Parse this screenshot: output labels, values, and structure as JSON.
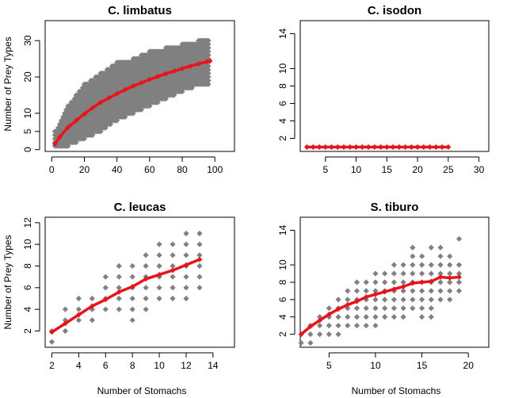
{
  "figure": {
    "bottom_label_left": "Number of Stomachs",
    "bottom_label_right": "Number of Stomachs",
    "side_label_top": "Number of Prey Types",
    "side_label_bottom": "Number of Prey Types"
  },
  "colors": {
    "points": "#808080",
    "curve": "#e8141a",
    "axis": "#000000"
  },
  "chart_data": [
    {
      "type": "scatter",
      "title": "C. limbatus",
      "xlabel": "",
      "ylabel": "Number of Prey Types",
      "xlim": [
        -4,
        112
      ],
      "ylim": [
        -0.5,
        35.5
      ],
      "xticks": [
        0,
        20,
        40,
        60,
        80,
        100
      ],
      "yticks": [
        0,
        5,
        10,
        20,
        30
      ],
      "scatter_mode": "band",
      "band": {
        "x": [
          2,
          10,
          20,
          30,
          40,
          50,
          60,
          70,
          80,
          90,
          96
        ],
        "low": [
          0.5,
          1,
          3,
          5,
          8,
          10,
          12,
          14,
          16,
          17.5,
          18
        ],
        "high": [
          5,
          12,
          18,
          21,
          24,
          25,
          27,
          28,
          29,
          30,
          30
        ]
      },
      "points_x": [],
      "points_y": [],
      "mean_curve": {
        "x": [
          2,
          5,
          10,
          15,
          20,
          25,
          30,
          35,
          40,
          45,
          50,
          55,
          60,
          65,
          70,
          75,
          80,
          85,
          90,
          95,
          97
        ],
        "y": [
          1.6,
          3.5,
          6.1,
          8.0,
          9.8,
          11.5,
          13.0,
          14.2,
          15.4,
          16.5,
          17.5,
          18.4,
          19.3,
          20.1,
          20.9,
          21.6,
          22.3,
          23.0,
          23.6,
          24.2,
          24.4
        ]
      }
    },
    {
      "type": "scatter",
      "title": "C. isodon",
      "xlabel": "",
      "ylabel": "",
      "xlim": [
        0.9,
        31.6
      ],
      "ylim": [
        0.5,
        15.5
      ],
      "xticks": [
        5,
        10,
        15,
        20,
        25,
        30
      ],
      "yticks": [
        2,
        4,
        6,
        8,
        10,
        14
      ],
      "scatter_mode": "points",
      "points_x": [
        2,
        3,
        4,
        5,
        6,
        7,
        8,
        9,
        10,
        11,
        12,
        13,
        14,
        15,
        16,
        17,
        18,
        19,
        20,
        21,
        22,
        23,
        24,
        25
      ],
      "points_y": [
        1,
        1,
        1,
        1,
        1,
        1,
        1,
        1,
        1,
        1,
        1,
        1,
        1,
        1,
        1,
        1,
        1,
        1,
        1,
        1,
        1,
        1,
        1,
        1
      ],
      "mean_curve": {
        "x": [
          2,
          3,
          4,
          5,
          6,
          7,
          8,
          9,
          10,
          11,
          12,
          13,
          14,
          15,
          16,
          17,
          18,
          19,
          20,
          21,
          22,
          23,
          24,
          25
        ],
        "y": [
          1,
          1,
          1,
          1,
          1,
          1,
          1,
          1,
          1,
          1,
          1,
          1,
          1,
          1,
          1,
          1,
          1,
          1,
          1,
          1,
          1,
          1,
          1,
          1
        ]
      }
    },
    {
      "type": "scatter",
      "title": "C. leucas",
      "xlabel": "Number of Stomachs",
      "ylabel": "Number of Prey Types",
      "xlim": [
        1.5,
        15.6
      ],
      "ylim": [
        0.5,
        12.5
      ],
      "xticks": [
        2,
        4,
        6,
        8,
        10,
        12,
        14
      ],
      "yticks": [
        2,
        4,
        6,
        8,
        10,
        12
      ],
      "scatter_mode": "points",
      "points_x": [
        2,
        2,
        3,
        3,
        3,
        4,
        4,
        4,
        5,
        5,
        5,
        6,
        6,
        6,
        6,
        7,
        7,
        7,
        7,
        7,
        8,
        8,
        8,
        8,
        8,
        8,
        9,
        9,
        9,
        9,
        9,
        9,
        10,
        10,
        10,
        10,
        10,
        10,
        11,
        11,
        11,
        11,
        11,
        11,
        12,
        12,
        12,
        12,
        12,
        12,
        12,
        13,
        13,
        13,
        13,
        13,
        13
      ],
      "points_y": [
        1,
        2,
        2,
        3,
        4,
        3,
        4,
        5,
        3,
        4,
        5,
        4,
        5,
        6,
        7,
        4,
        5,
        6,
        7,
        8,
        3,
        4,
        5,
        6,
        7,
        8,
        4,
        6,
        7,
        8,
        9,
        5,
        5,
        6,
        7,
        8,
        9,
        10,
        5,
        6,
        7,
        8,
        9,
        10,
        6,
        7,
        8,
        9,
        10,
        11,
        5,
        6,
        7,
        8,
        9,
        10,
        11
      ],
      "mean_curve": {
        "x": [
          2,
          3,
          4,
          5,
          6,
          7,
          8,
          9,
          10,
          11,
          12,
          13
        ],
        "y": [
          1.9,
          2.7,
          3.5,
          4.3,
          4.9,
          5.6,
          6.1,
          6.8,
          7.2,
          7.6,
          8.1,
          8.6
        ]
      }
    },
    {
      "type": "scatter",
      "title": "S. tiburo",
      "xlabel": "Number of Stomachs",
      "ylabel": "",
      "xlim": [
        1.9,
        22.2
      ],
      "ylim": [
        0.5,
        15.5
      ],
      "xticks": [
        5,
        10,
        15,
        20
      ],
      "yticks": [
        2,
        4,
        6,
        8,
        10,
        14
      ],
      "scatter_mode": "points",
      "points_x": [
        2,
        2,
        3,
        3,
        3,
        4,
        4,
        4,
        5,
        5,
        5,
        5,
        6,
        6,
        6,
        6,
        6,
        7,
        7,
        7,
        7,
        7,
        8,
        8,
        8,
        8,
        8,
        8,
        9,
        9,
        9,
        9,
        9,
        9,
        10,
        10,
        10,
        10,
        10,
        10,
        10,
        11,
        11,
        11,
        11,
        11,
        11,
        12,
        12,
        12,
        12,
        12,
        12,
        12,
        13,
        13,
        13,
        13,
        13,
        13,
        13,
        14,
        14,
        14,
        14,
        14,
        14,
        14,
        14,
        15,
        15,
        15,
        15,
        15,
        15,
        15,
        15,
        16,
        16,
        16,
        16,
        16,
        16,
        16,
        16,
        17,
        17,
        17,
        17,
        17,
        17,
        17,
        18,
        18,
        18,
        18,
        18,
        18,
        19,
        19,
        19,
        19,
        19
      ],
      "points_y": [
        1,
        2,
        1,
        2,
        3,
        2,
        3,
        4,
        2,
        3,
        4,
        5,
        2,
        3,
        4,
        5,
        6,
        3,
        4,
        5,
        6,
        7,
        3,
        4,
        5,
        6,
        7,
        8,
        3,
        4,
        5,
        6,
        7,
        8,
        3,
        4,
        5,
        6,
        7,
        8,
        9,
        4,
        5,
        6,
        7,
        8,
        9,
        4,
        5,
        6,
        7,
        8,
        9,
        10,
        4,
        5,
        6,
        7,
        8,
        9,
        10,
        5,
        6,
        7,
        8,
        9,
        10,
        11,
        12,
        4,
        5,
        6,
        7,
        8,
        9,
        10,
        11,
        4,
        5,
        6,
        7,
        8,
        9,
        10,
        12,
        6,
        7,
        8,
        9,
        10,
        11,
        12,
        6,
        7,
        8,
        9,
        10,
        11,
        7,
        8,
        9,
        10,
        13
      ],
      "mean_curve": {
        "x": [
          2,
          3,
          4,
          5,
          6,
          7,
          8,
          9,
          10,
          11,
          12,
          13,
          14,
          15,
          16,
          17,
          18,
          19
        ],
        "y": [
          2.0,
          2.9,
          3.6,
          4.3,
          4.9,
          5.4,
          5.8,
          6.3,
          6.6,
          6.9,
          7.2,
          7.5,
          7.9,
          8.0,
          8.1,
          8.6,
          8.5,
          8.6
        ]
      }
    }
  ]
}
